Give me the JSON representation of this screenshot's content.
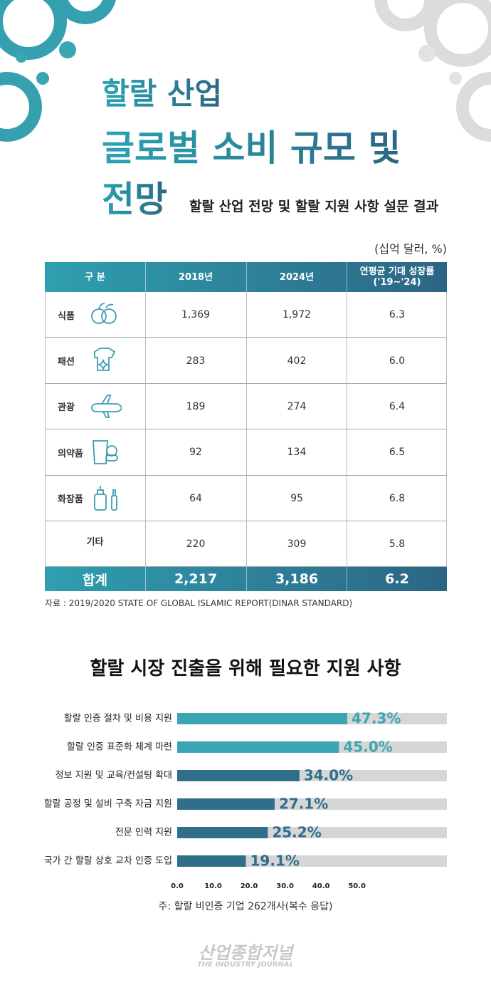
{
  "header": {
    "title_line1": "할랄 산업",
    "title_line2": "글로벌 소비 규모 및",
    "title_line3": "전망",
    "subtitle": "할랄 산업 전망 및 할랄 지원 사항 설문 결과",
    "unit": "(십억 달러, %)"
  },
  "table": {
    "columns": [
      "구 분",
      "2018년",
      "2024년",
      "연평균 기대 성장률\n('19~'24)"
    ],
    "rows": [
      [
        "식품",
        "1,369",
        "1,972",
        "6.3"
      ],
      [
        "패션",
        "283",
        "402",
        "6.0"
      ],
      [
        "관광",
        "189",
        "274",
        "6.4"
      ],
      [
        "의약품",
        "92",
        "134",
        "6.5"
      ],
      [
        "화장품",
        "64",
        "95",
        "6.8"
      ],
      [
        "기타",
        "220",
        "309",
        "5.8"
      ]
    ],
    "total": [
      "합계",
      "2,217",
      "3,186",
      "6.2"
    ]
  },
  "source": "자료 : 2019/2020 STATE OF GLOBAL ISLAMIC REPORT(DINAR STANDARD)",
  "chart_data": {
    "type": "hbar",
    "title": "할랄 시장 진출을 위해 필요한 지원 사항",
    "categories": [
      "할랄 인증 절차 및 비용 지원",
      "할랄 인증 표준화 체계 마련",
      "정보 지원 및 교육/컨설팅 확대",
      "할랄 공정 및 설비 구축 자금 지원",
      "전문 인력 지원",
      "국가 간 할랄 상호 교차 인증 도입"
    ],
    "values": [
      47.3,
      45.0,
      34.0,
      27.1,
      25.2,
      19.1
    ],
    "value_labels": [
      "47.3%",
      "45.0%",
      "34.0%",
      "27.1%",
      "25.2%",
      "19.1%"
    ],
    "colors": [
      "#3aa6b4",
      "#3aa6b4",
      "#2f6f8c",
      "#2f6f8c",
      "#2f6f8c",
      "#2f6f8c"
    ],
    "track_color": "#d6d6d6",
    "xlim": [
      0,
      75
    ],
    "xticks": [
      {
        "value": 0,
        "label": "0.0"
      },
      {
        "value": 10,
        "label": "10.0"
      },
      {
        "value": 20,
        "label": "20.0"
      },
      {
        "value": 30,
        "label": "30.0"
      },
      {
        "value": 40,
        "label": "40.0"
      },
      {
        "value": 50,
        "label": "50.0"
      }
    ],
    "note": "주: 할랄 비인증 기업 262개사(복수 응답)"
  },
  "footer": {
    "logo": "산업종합저널",
    "logo_sub": "THE INDUSTRY JOURNAL"
  }
}
